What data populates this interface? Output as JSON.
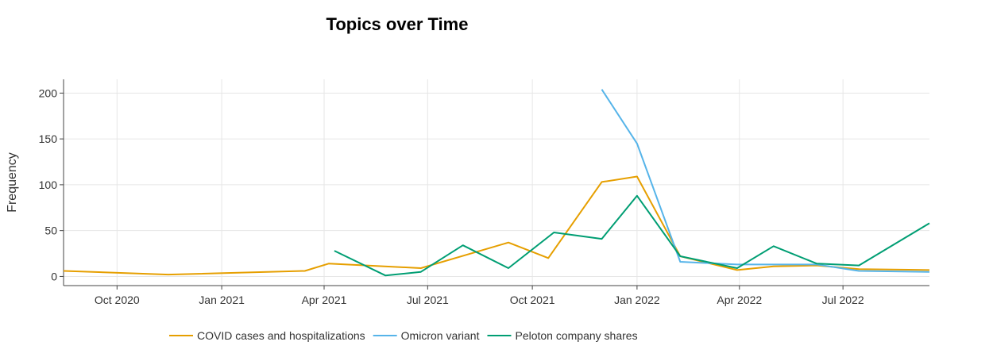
{
  "chart_data": {
    "type": "line",
    "title": "Topics over Time",
    "xlabel": "",
    "ylabel": "Frequency",
    "x_range": [
      "2020-08-15",
      "2022-09-15"
    ],
    "ylim": [
      -10,
      215
    ],
    "y_ticks": [
      0,
      50,
      100,
      150,
      200
    ],
    "x_ticks": [
      {
        "date": "2020-10-01",
        "label": "Oct 2020"
      },
      {
        "date": "2021-01-01",
        "label": "Jan 2021"
      },
      {
        "date": "2021-04-01",
        "label": "Apr 2021"
      },
      {
        "date": "2021-07-01",
        "label": "Jul 2021"
      },
      {
        "date": "2021-10-01",
        "label": "Oct 2021"
      },
      {
        "date": "2022-01-01",
        "label": "Jan 2022"
      },
      {
        "date": "2022-04-01",
        "label": "Apr 2022"
      },
      {
        "date": "2022-07-01",
        "label": "Jul 2022"
      }
    ],
    "grid": true,
    "legend_position": "bottom",
    "series": [
      {
        "name": "COVID cases and hospitalizations",
        "color": "#E69F00",
        "points": [
          {
            "date": "2020-08-15",
            "value": 6
          },
          {
            "date": "2020-11-15",
            "value": 2
          },
          {
            "date": "2021-03-15",
            "value": 6
          },
          {
            "date": "2021-04-05",
            "value": 14
          },
          {
            "date": "2021-06-25",
            "value": 9
          },
          {
            "date": "2021-09-10",
            "value": 37
          },
          {
            "date": "2021-10-15",
            "value": 20
          },
          {
            "date": "2021-12-01",
            "value": 103
          },
          {
            "date": "2022-01-01",
            "value": 109
          },
          {
            "date": "2022-02-08",
            "value": 22
          },
          {
            "date": "2022-03-30",
            "value": 7
          },
          {
            "date": "2022-05-01",
            "value": 11
          },
          {
            "date": "2022-06-08",
            "value": 12
          },
          {
            "date": "2022-07-15",
            "value": 8
          },
          {
            "date": "2022-09-15",
            "value": 7
          }
        ]
      },
      {
        "name": "Omicron variant",
        "color": "#56B4E9",
        "points": [
          {
            "date": "2021-12-01",
            "value": 204
          },
          {
            "date": "2022-01-01",
            "value": 145
          },
          {
            "date": "2022-02-08",
            "value": 16
          },
          {
            "date": "2022-03-30",
            "value": 13
          },
          {
            "date": "2022-05-01",
            "value": 13
          },
          {
            "date": "2022-06-08",
            "value": 13
          },
          {
            "date": "2022-07-15",
            "value": 6
          },
          {
            "date": "2022-09-15",
            "value": 5
          }
        ]
      },
      {
        "name": "Peloton company shares",
        "color": "#009E73",
        "points": [
          {
            "date": "2021-04-10",
            "value": 28
          },
          {
            "date": "2021-05-25",
            "value": 1
          },
          {
            "date": "2021-06-25",
            "value": 5
          },
          {
            "date": "2021-08-01",
            "value": 34
          },
          {
            "date": "2021-09-10",
            "value": 9
          },
          {
            "date": "2021-10-20",
            "value": 48
          },
          {
            "date": "2021-12-01",
            "value": 41
          },
          {
            "date": "2022-01-01",
            "value": 88
          },
          {
            "date": "2022-02-08",
            "value": 22
          },
          {
            "date": "2022-03-30",
            "value": 9
          },
          {
            "date": "2022-05-01",
            "value": 33
          },
          {
            "date": "2022-06-08",
            "value": 14
          },
          {
            "date": "2022-07-15",
            "value": 12
          },
          {
            "date": "2022-09-15",
            "value": 58
          }
        ]
      }
    ]
  }
}
